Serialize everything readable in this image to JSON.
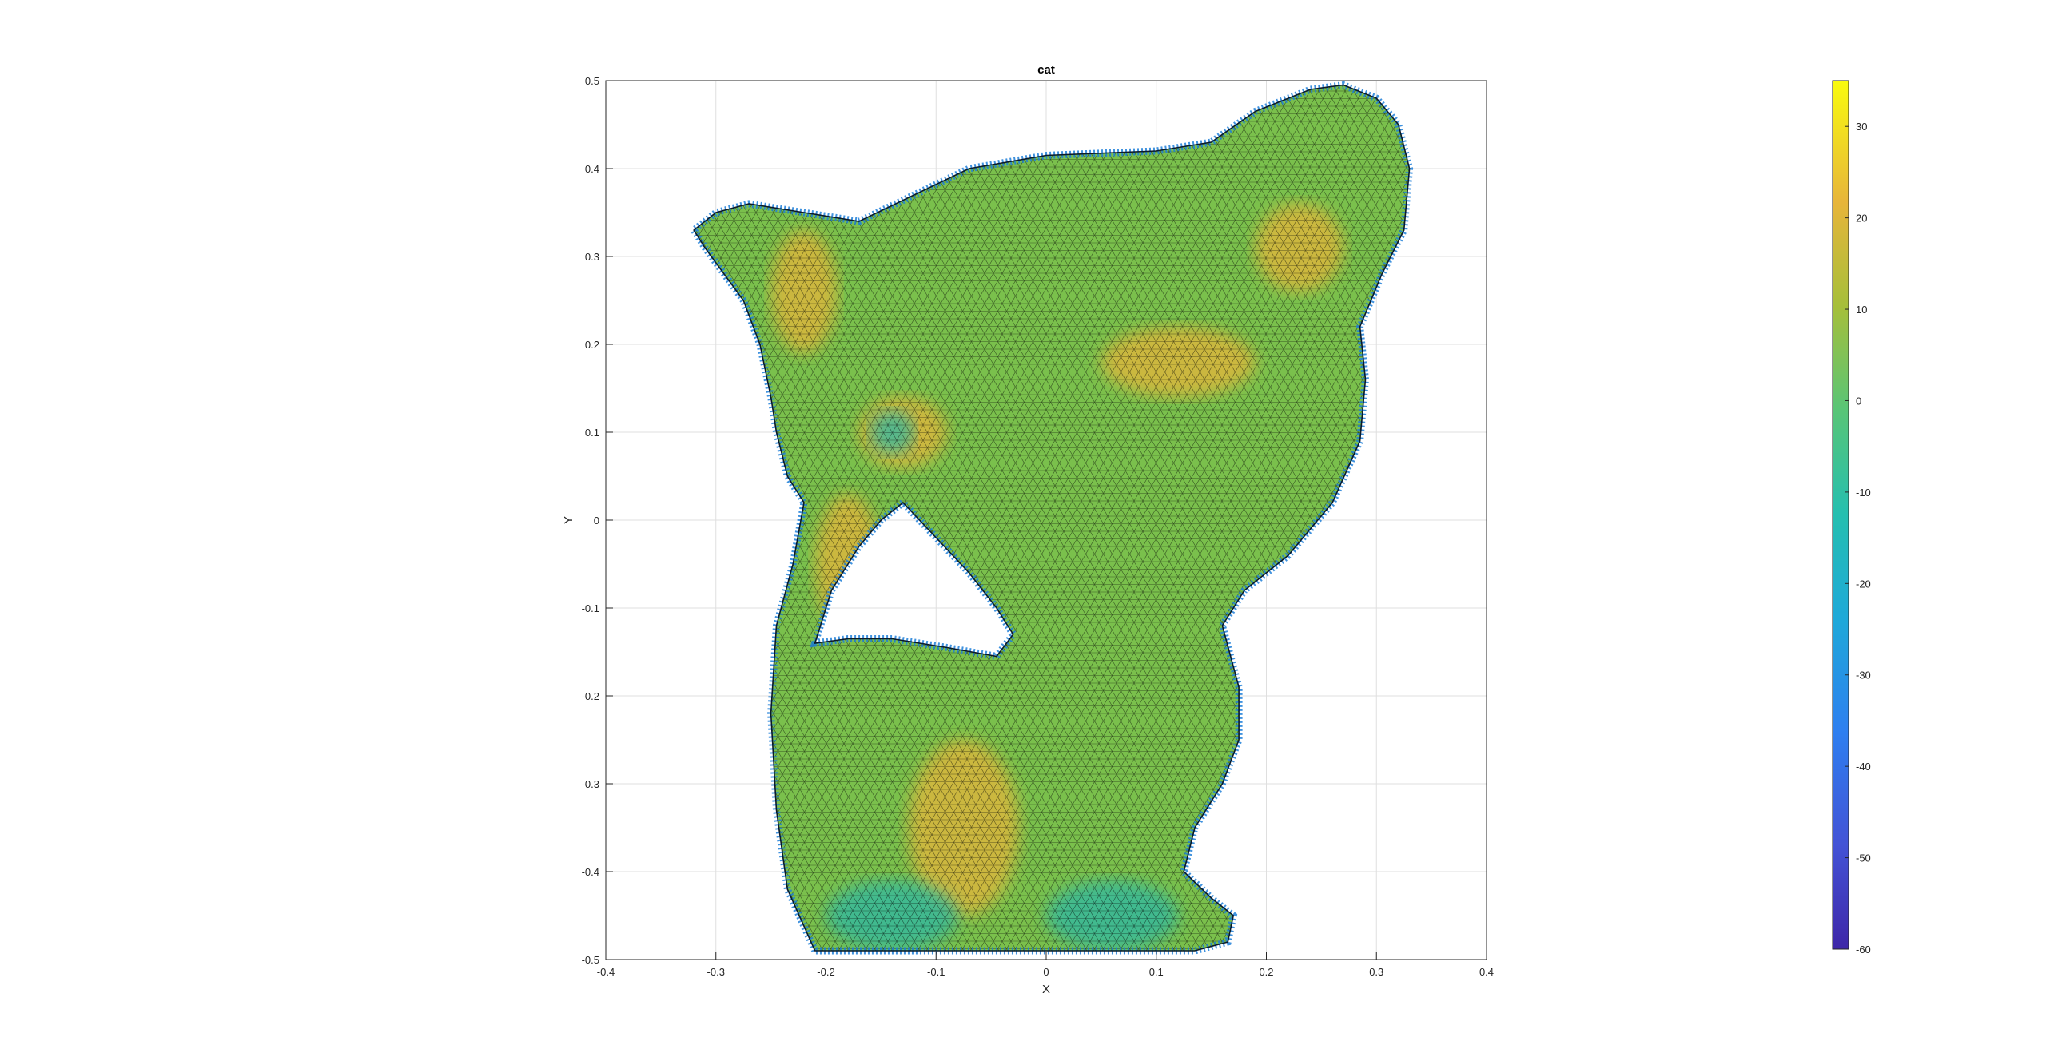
{
  "chart_data": {
    "type": "surface",
    "title": "cat",
    "xlabel": "X",
    "ylabel": "Y",
    "xlim": [
      -0.4,
      0.4
    ],
    "ylim": [
      -0.5,
      0.5
    ],
    "xticks": [
      "-0.4",
      "-0.3",
      "-0.2",
      "-0.1",
      "0",
      "0.1",
      "0.2",
      "0.3",
      "0.4"
    ],
    "yticks": [
      "-0.5",
      "-0.4",
      "-0.3",
      "-0.2",
      "-0.1",
      "0",
      "0.1",
      "0.2",
      "0.3",
      "0.4",
      "0.5"
    ],
    "grid": true,
    "colormap": "parula",
    "colorbar": {
      "lim": [
        -60,
        35
      ],
      "ticks": [
        "-60",
        "-50",
        "-40",
        "-30",
        "-20",
        "-10",
        "0",
        "10",
        "20",
        "30"
      ],
      "location": "right"
    },
    "colors": {
      "low": "#3e26a8",
      "mid": "#2eb7a4",
      "base": "#7ac04c",
      "warm": "#e7b53a",
      "high": "#f9fb0e",
      "edge": "#1f7fd8",
      "mesh": "#000000"
    },
    "shape": {
      "body_outline": [
        [
          -0.21,
          -0.49
        ],
        [
          -0.235,
          -0.42
        ],
        [
          -0.245,
          -0.33
        ],
        [
          -0.25,
          -0.22
        ],
        [
          -0.245,
          -0.12
        ],
        [
          -0.23,
          -0.05
        ],
        [
          -0.22,
          0.02
        ],
        [
          -0.235,
          0.05
        ],
        [
          -0.245,
          0.1
        ],
        [
          -0.25,
          0.14
        ],
        [
          -0.26,
          0.2
        ],
        [
          -0.275,
          0.25
        ],
        [
          -0.31,
          0.31
        ],
        [
          -0.32,
          0.33
        ],
        [
          -0.3,
          0.35
        ],
        [
          -0.27,
          0.36
        ],
        [
          -0.22,
          0.35
        ],
        [
          -0.17,
          0.34
        ],
        [
          -0.12,
          0.37
        ],
        [
          -0.07,
          0.4
        ],
        [
          0.0,
          0.415
        ],
        [
          0.1,
          0.42
        ],
        [
          0.15,
          0.43
        ],
        [
          0.19,
          0.465
        ],
        [
          0.24,
          0.49
        ],
        [
          0.27,
          0.495
        ],
        [
          0.3,
          0.48
        ],
        [
          0.32,
          0.45
        ],
        [
          0.33,
          0.4
        ],
        [
          0.325,
          0.33
        ],
        [
          0.305,
          0.28
        ],
        [
          0.285,
          0.22
        ],
        [
          0.29,
          0.16
        ],
        [
          0.285,
          0.09
        ],
        [
          0.26,
          0.02
        ],
        [
          0.22,
          -0.04
        ],
        [
          0.18,
          -0.08
        ],
        [
          0.16,
          -0.12
        ],
        [
          0.175,
          -0.19
        ],
        [
          0.175,
          -0.25
        ],
        [
          0.16,
          -0.3
        ],
        [
          0.135,
          -0.35
        ],
        [
          0.125,
          -0.4
        ],
        [
          0.15,
          -0.43
        ],
        [
          0.17,
          -0.45
        ],
        [
          0.165,
          -0.48
        ],
        [
          0.135,
          -0.49
        ],
        [
          0.0,
          -0.49
        ],
        [
          -0.1,
          -0.49
        ],
        [
          -0.21,
          -0.49
        ]
      ],
      "hole_outline": [
        [
          -0.21,
          -0.14
        ],
        [
          -0.195,
          -0.08
        ],
        [
          -0.17,
          -0.03
        ],
        [
          -0.15,
          0.0
        ],
        [
          -0.13,
          0.02
        ],
        [
          -0.1,
          -0.02
        ],
        [
          -0.07,
          -0.06
        ],
        [
          -0.045,
          -0.1
        ],
        [
          -0.03,
          -0.13
        ],
        [
          -0.045,
          -0.155
        ],
        [
          -0.09,
          -0.145
        ],
        [
          -0.14,
          -0.135
        ],
        [
          -0.18,
          -0.135
        ],
        [
          -0.21,
          -0.14
        ]
      ],
      "warm_patches": [
        {
          "cx": -0.22,
          "cy": 0.26,
          "rx": 0.03,
          "ry": 0.07
        },
        {
          "cx": -0.13,
          "cy": 0.1,
          "rx": 0.04,
          "ry": 0.04
        },
        {
          "cx": 0.12,
          "cy": 0.18,
          "rx": 0.07,
          "ry": 0.04
        },
        {
          "cx": -0.075,
          "cy": -0.35,
          "rx": 0.05,
          "ry": 0.1
        },
        {
          "cx": -0.18,
          "cy": -0.05,
          "rx": 0.03,
          "ry": 0.08
        },
        {
          "cx": 0.23,
          "cy": 0.31,
          "rx": 0.04,
          "ry": 0.05
        }
      ],
      "cool_patches": [
        {
          "cx": -0.14,
          "cy": -0.45,
          "rx": 0.06,
          "ry": 0.04
        },
        {
          "cx": 0.06,
          "cy": -0.45,
          "rx": 0.06,
          "ry": 0.04
        },
        {
          "cx": -0.14,
          "cy": 0.1,
          "rx": 0.02,
          "ry": 0.025
        }
      ]
    }
  }
}
